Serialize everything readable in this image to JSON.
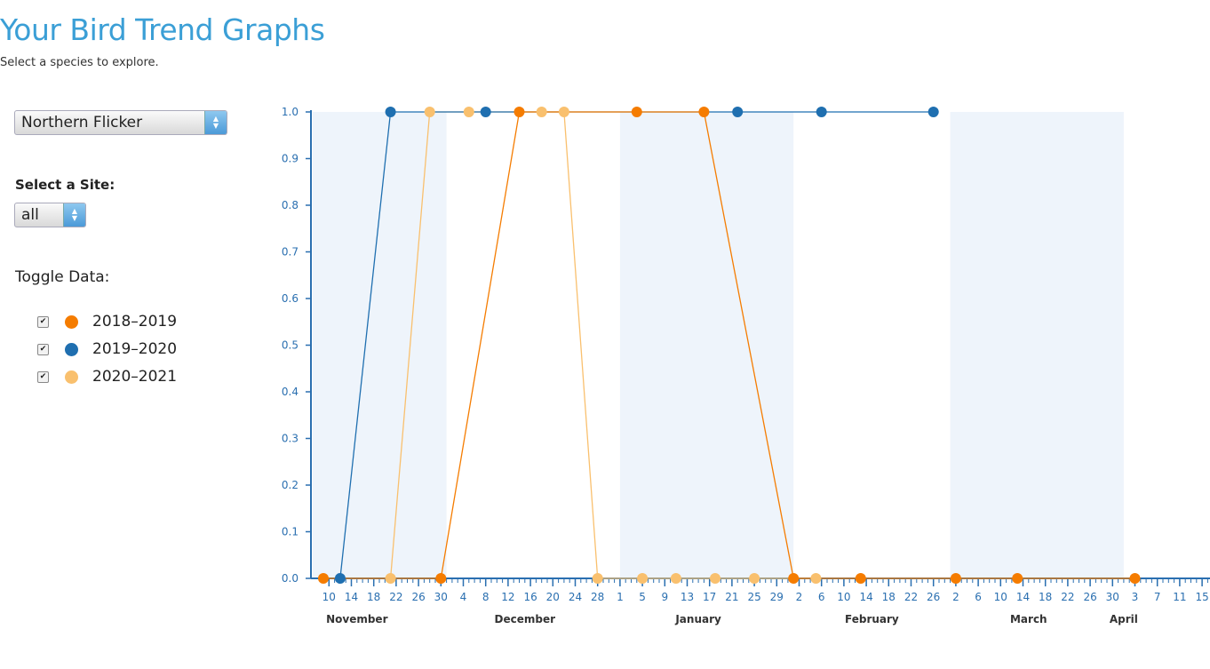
{
  "header": {
    "title": "Your Bird Trend Graphs",
    "subtitle": "Select a species to explore."
  },
  "controls": {
    "species_value": "Northern Flicker",
    "site_label": "Select a Site:",
    "site_value": "all",
    "toggle_label": "Toggle Data:",
    "toggles": [
      {
        "label": "2018–2019",
        "checked": true,
        "color": "#f57c00"
      },
      {
        "label": "2019–2020",
        "checked": true,
        "color": "#1f6fb0"
      },
      {
        "label": "2020–2021",
        "checked": true,
        "color": "#f9c06e"
      }
    ]
  },
  "chart_data": {
    "type": "line",
    "title": "",
    "xlabel": "",
    "ylabel": "",
    "ylim": [
      0,
      1
    ],
    "yticks": [
      "0.0",
      "0.1",
      "0.2",
      "0.3",
      "0.4",
      "0.5",
      "0.6",
      "0.7",
      "0.8",
      "0.9",
      "1.0"
    ],
    "x_domain": [
      "Nov 9",
      "Apr 17"
    ],
    "x_tick_labels": [
      {
        "date": "Nov 10",
        "label": "10"
      },
      {
        "date": "Nov 14",
        "label": "14"
      },
      {
        "date": "Nov 18",
        "label": "18"
      },
      {
        "date": "Nov 22",
        "label": "22"
      },
      {
        "date": "Nov 26",
        "label": "26"
      },
      {
        "date": "Nov 30",
        "label": "30"
      },
      {
        "date": "Dec 4",
        "label": "4"
      },
      {
        "date": "Dec 8",
        "label": "8"
      },
      {
        "date": "Dec 12",
        "label": "12"
      },
      {
        "date": "Dec 16",
        "label": "16"
      },
      {
        "date": "Dec 20",
        "label": "20"
      },
      {
        "date": "Dec 24",
        "label": "24"
      },
      {
        "date": "Dec 28",
        "label": "28"
      },
      {
        "date": "Jan 1",
        "label": "1"
      },
      {
        "date": "Jan 5",
        "label": "5"
      },
      {
        "date": "Jan 9",
        "label": "9"
      },
      {
        "date": "Jan 13",
        "label": "13"
      },
      {
        "date": "Jan 17",
        "label": "17"
      },
      {
        "date": "Jan 21",
        "label": "21"
      },
      {
        "date": "Jan 25",
        "label": "25"
      },
      {
        "date": "Jan 29",
        "label": "29"
      },
      {
        "date": "Feb 2",
        "label": "2"
      },
      {
        "date": "Feb 6",
        "label": "6"
      },
      {
        "date": "Feb 10",
        "label": "10"
      },
      {
        "date": "Feb 14",
        "label": "14"
      },
      {
        "date": "Feb 18",
        "label": "18"
      },
      {
        "date": "Feb 22",
        "label": "22"
      },
      {
        "date": "Feb 26",
        "label": "26"
      },
      {
        "date": "Mar 2",
        "label": "2"
      },
      {
        "date": "Mar 6",
        "label": "6"
      },
      {
        "date": "Mar 10",
        "label": "10"
      },
      {
        "date": "Mar 14",
        "label": "14"
      },
      {
        "date": "Mar 18",
        "label": "18"
      },
      {
        "date": "Mar 22",
        "label": "22"
      },
      {
        "date": "Mar 26",
        "label": "26"
      },
      {
        "date": "Mar 30",
        "label": "30"
      },
      {
        "date": "Apr 3",
        "label": "3"
      },
      {
        "date": "Apr 7",
        "label": "7"
      },
      {
        "date": "Apr 11",
        "label": "11"
      },
      {
        "date": "Apr 15",
        "label": "15"
      }
    ],
    "month_labels": [
      {
        "date": "Nov 15",
        "label": "November"
      },
      {
        "date": "Dec 15",
        "label": "December"
      },
      {
        "date": "Jan 15",
        "label": "January"
      },
      {
        "date": "Feb 15",
        "label": "February"
      },
      {
        "date": "Mar 15",
        "label": "March"
      },
      {
        "date": "Apr 1",
        "label": "April"
      }
    ],
    "shaded_months": [
      "November",
      "January",
      "March"
    ],
    "series": [
      {
        "name": "2018–2019",
        "color": "#f57c00",
        "x": [
          "Nov 9",
          "Nov 30",
          "Dec 14",
          "Jan 4",
          "Jan 16",
          "Feb 1",
          "Feb 13",
          "Mar 2",
          "Mar 13",
          "Apr 3"
        ],
        "y": [
          0,
          0,
          1,
          1,
          1,
          0,
          0,
          0,
          0,
          0
        ]
      },
      {
        "name": "2019–2020",
        "color": "#1f6fb0",
        "x": [
          "Nov 12",
          "Nov 21",
          "Dec 8",
          "Jan 22",
          "Feb 6",
          "Feb 26"
        ],
        "y": [
          0,
          1,
          1,
          1,
          1,
          1
        ]
      },
      {
        "name": "2020–2021",
        "color": "#f9c06e",
        "x": [
          "Nov 21",
          "Nov 28",
          "Dec 5",
          "Dec 18",
          "Dec 22",
          "Dec 28",
          "Jan 5",
          "Jan 11",
          "Jan 18",
          "Jan 25",
          "Feb 5"
        ],
        "y": [
          0,
          1,
          1,
          1,
          1,
          0,
          0,
          0,
          0,
          0,
          0
        ]
      }
    ]
  }
}
